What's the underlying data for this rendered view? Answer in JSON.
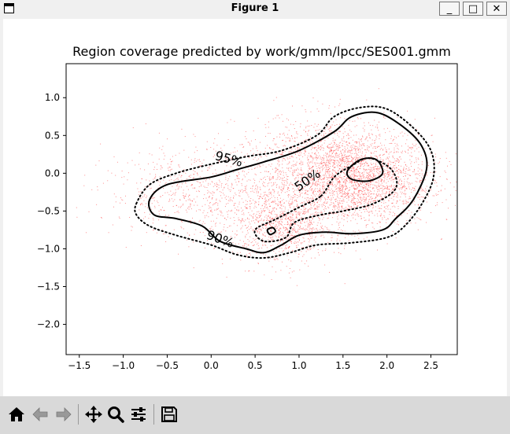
{
  "window": {
    "title": "Figure 1",
    "minimize_label": "_",
    "maximize_label": "□",
    "close_label": "✕"
  },
  "toolbar": {
    "tools": [
      {
        "name": "home-icon"
      },
      {
        "name": "back-icon"
      },
      {
        "name": "forward-icon"
      },
      {
        "name": "pan-icon"
      },
      {
        "name": "zoom-icon"
      },
      {
        "name": "configure-subplots-icon"
      },
      {
        "name": "save-icon"
      }
    ]
  },
  "colors": {
    "scatter": "#ff3030",
    "contour": "#000000",
    "toolbar": "#d9d9d9"
  },
  "chart_data": {
    "type": "scatter",
    "title": "Region coverage predicted by work/gmm/lpcc/SES001.gmm",
    "xlabel": "",
    "ylabel": "",
    "xlim": [
      -1.65,
      2.8
    ],
    "ylim": [
      -2.4,
      1.45
    ],
    "xticks": [
      -1.5,
      -1.0,
      -0.5,
      0.0,
      0.5,
      1.0,
      1.5,
      2.0,
      2.5
    ],
    "xtick_labels": [
      "−1.5",
      "−1.0",
      "−0.5",
      "0.0",
      "0.5",
      "1.0",
      "1.5",
      "2.0",
      "2.5"
    ],
    "yticks": [
      1.0,
      0.5,
      0.0,
      -0.5,
      -1.0,
      -1.5,
      -2.0
    ],
    "ytick_labels": [
      "1.0",
      "0.5",
      "0.0",
      "−0.5",
      "−1.0",
      "−1.5",
      "−2.0"
    ],
    "grid": false,
    "scatter_clusters": [
      {
        "center": [
          1.6,
          -0.1
        ],
        "spread": [
          0.45,
          0.3
        ],
        "count": 2600
      },
      {
        "center": [
          0.8,
          -0.7
        ],
        "spread": [
          0.28,
          0.25
        ],
        "count": 900
      },
      {
        "center": [
          0.0,
          -0.25
        ],
        "spread": [
          0.6,
          0.3
        ],
        "count": 900
      },
      {
        "center": [
          1.3,
          0.3
        ],
        "spread": [
          0.5,
          0.25
        ],
        "count": 600
      }
    ],
    "contours": [
      {
        "label": "50%",
        "style": "dotted",
        "points": [
          [
            1.25,
            -0.3
          ],
          [
            1.4,
            -0.05
          ],
          [
            1.6,
            0.1
          ],
          [
            1.8,
            0.2
          ],
          [
            2.05,
            0.05
          ],
          [
            2.1,
            -0.2
          ],
          [
            1.85,
            -0.4
          ],
          [
            1.5,
            -0.5
          ],
          [
            1.25,
            -0.55
          ],
          [
            0.95,
            -0.65
          ],
          [
            0.85,
            -0.85
          ],
          [
            0.6,
            -0.9
          ],
          [
            0.5,
            -0.75
          ],
          [
            0.75,
            -0.6
          ],
          [
            1.0,
            -0.45
          ],
          [
            1.25,
            -0.3
          ]
        ],
        "label_pos": [
          1.1,
          -0.1
        ],
        "label_rotation": -35
      },
      {
        "label": "",
        "style": "solid",
        "points": [
          [
            1.55,
            0.03
          ],
          [
            1.7,
            0.18
          ],
          [
            1.88,
            0.18
          ],
          [
            1.95,
            0.0
          ],
          [
            1.8,
            -0.1
          ],
          [
            1.6,
            -0.08
          ],
          [
            1.55,
            0.03
          ]
        ]
      },
      {
        "label": "",
        "style": "solid",
        "points": [
          [
            0.64,
            -0.75
          ],
          [
            0.7,
            -0.72
          ],
          [
            0.73,
            -0.77
          ],
          [
            0.67,
            -0.81
          ],
          [
            0.64,
            -0.75
          ]
        ]
      },
      {
        "label": "90%",
        "style": "solid",
        "points": [
          [
            -0.7,
            -0.35
          ],
          [
            -0.5,
            -0.15
          ],
          [
            0.0,
            -0.05
          ],
          [
            0.3,
            0.05
          ],
          [
            0.6,
            0.15
          ],
          [
            1.0,
            0.3
          ],
          [
            1.4,
            0.55
          ],
          [
            1.6,
            0.75
          ],
          [
            1.9,
            0.8
          ],
          [
            2.2,
            0.6
          ],
          [
            2.4,
            0.35
          ],
          [
            2.45,
            0.05
          ],
          [
            2.3,
            -0.35
          ],
          [
            2.1,
            -0.6
          ],
          [
            1.95,
            -0.75
          ],
          [
            1.6,
            -0.8
          ],
          [
            1.3,
            -0.78
          ],
          [
            1.0,
            -0.82
          ],
          [
            0.8,
            -0.95
          ],
          [
            0.6,
            -1.05
          ],
          [
            0.4,
            -1.0
          ],
          [
            0.1,
            -0.9
          ],
          [
            -0.1,
            -0.7
          ],
          [
            -0.4,
            -0.6
          ],
          [
            -0.65,
            -0.55
          ],
          [
            -0.7,
            -0.35
          ]
        ],
        "label_pos": [
          0.1,
          -0.88
        ],
        "label_rotation": 20
      },
      {
        "label": "95%",
        "style": "dotted",
        "points": [
          [
            -0.85,
            -0.4
          ],
          [
            -0.7,
            -0.15
          ],
          [
            -0.4,
            0.0
          ],
          [
            0.0,
            0.12
          ],
          [
            0.4,
            0.22
          ],
          [
            0.8,
            0.3
          ],
          [
            1.2,
            0.5
          ],
          [
            1.4,
            0.75
          ],
          [
            1.7,
            0.87
          ],
          [
            2.0,
            0.85
          ],
          [
            2.3,
            0.6
          ],
          [
            2.5,
            0.3
          ],
          [
            2.53,
            -0.05
          ],
          [
            2.4,
            -0.4
          ],
          [
            2.2,
            -0.7
          ],
          [
            2.0,
            -0.85
          ],
          [
            1.6,
            -0.92
          ],
          [
            1.2,
            -0.95
          ],
          [
            0.9,
            -1.05
          ],
          [
            0.6,
            -1.12
          ],
          [
            0.3,
            -1.08
          ],
          [
            0.0,
            -0.95
          ],
          [
            -0.4,
            -0.82
          ],
          [
            -0.7,
            -0.7
          ],
          [
            -0.85,
            -0.55
          ],
          [
            -0.85,
            -0.4
          ]
        ],
        "label_pos": [
          0.2,
          0.18
        ],
        "label_rotation": 15
      }
    ]
  }
}
